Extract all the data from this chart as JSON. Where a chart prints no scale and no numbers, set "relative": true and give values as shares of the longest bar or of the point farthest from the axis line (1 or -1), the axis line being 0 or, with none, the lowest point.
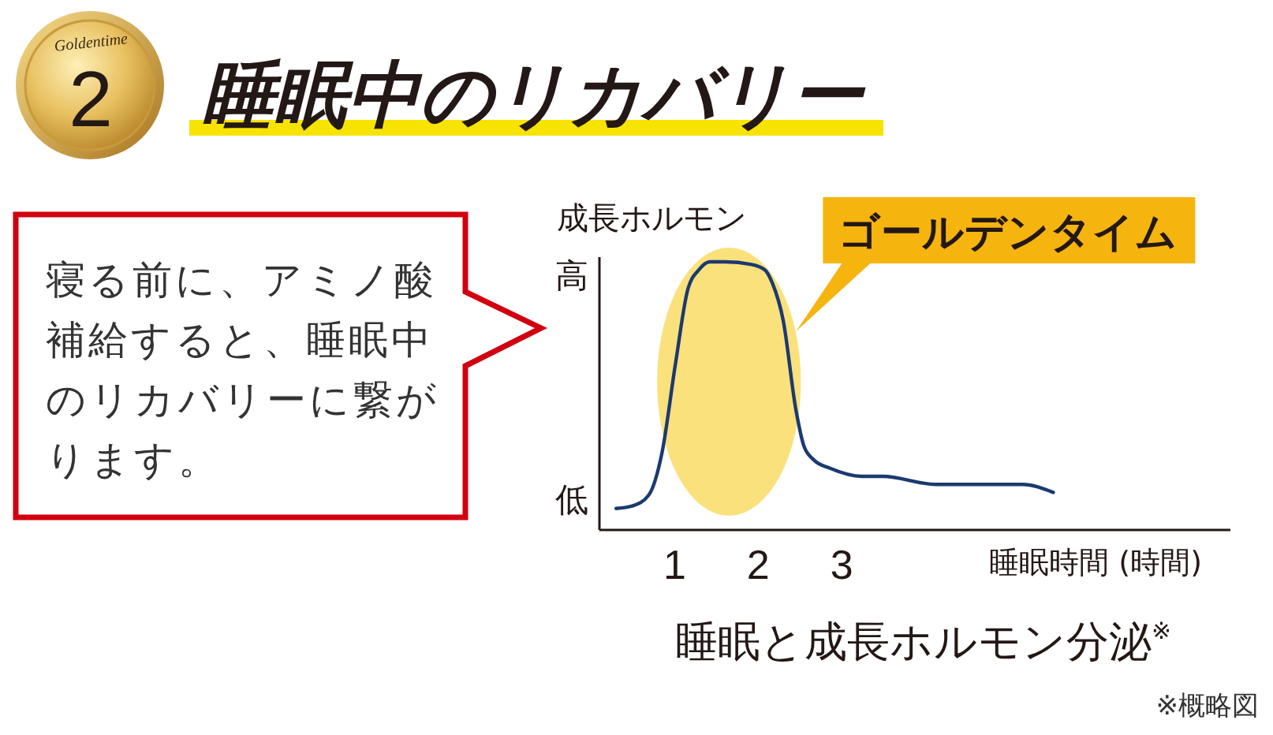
{
  "chart_data": {
    "type": "line",
    "title": "睡眠中のリカバリー",
    "ylabel": "成長ホルモン",
    "xlabel": "睡眠時間 (時間)",
    "relative": true,
    "x": [
      0.3,
      0.5,
      0.69,
      0.85,
      1.01,
      1.16,
      1.29,
      1.42,
      1.6,
      1.92,
      2.08,
      2.17,
      2.3,
      2.45,
      2.55,
      2.67,
      2.86,
      3.24,
      3.49,
      4.12,
      5.16,
      5.53
    ],
    "series": [
      {
        "color": "#1b3a70",
        "values": [
          0.08,
          0.09,
          0.13,
          0.29,
          0.62,
          0.9,
          0.97,
          1.0,
          1.0,
          0.99,
          0.97,
          0.92,
          0.78,
          0.45,
          0.31,
          0.26,
          0.23,
          0.2,
          0.2,
          0.17,
          0.17,
          0.14
        ]
      }
    ],
    "xlim": [
      0.1,
      7.65
    ],
    "xticks": [
      1,
      2,
      3
    ],
    "bands": [
      {
        "axis": "x",
        "from": 0.79,
        "to": 2.51,
        "label": "ゴールデンタイム",
        "color": "#fbe17c"
      }
    ],
    "annotations": [
      "2",
      "Goldentime",
      "高",
      "低",
      "寝る前に、アミノ酸補給すると、睡眠中のリカバリーに繋がります。",
      "睡眠と成長ホルモン分泌$^{※}$",
      "※概略図"
    ]
  }
}
